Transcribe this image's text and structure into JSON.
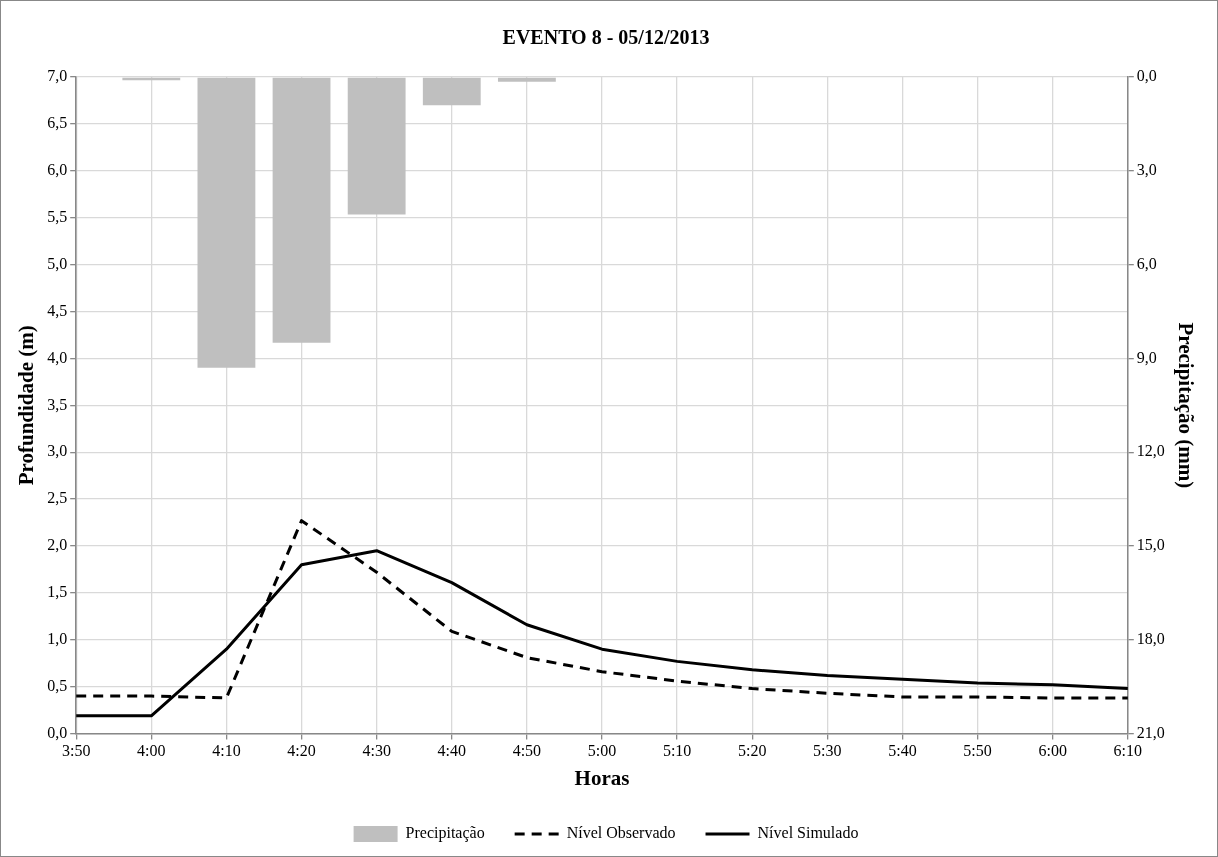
{
  "chart_data": {
    "type": "line",
    "title": "EVENTO 8 - 05/12/2013",
    "xlabel": "Horas",
    "ylabel": "Profundidade (m)",
    "y2label": "Precipitação (mm)",
    "categories": [
      "3:50",
      "4:00",
      "4:10",
      "4:20",
      "4:30",
      "4:40",
      "4:50",
      "5:00",
      "5:10",
      "5:20",
      "5:30",
      "5:40",
      "5:50",
      "6:00",
      "6:10"
    ],
    "series": [
      {
        "name": "Precipitação",
        "type": "bar",
        "axis": "y2",
        "color": "#bfbfbf",
        "values": [
          null,
          0.1,
          9.3,
          8.5,
          4.4,
          0.9,
          0.15,
          null,
          null,
          null,
          null,
          null,
          null,
          null,
          null
        ]
      },
      {
        "name": "Nível Observado",
        "line_style": "dashed",
        "color": "#000000",
        "values": [
          0.4,
          0.4,
          0.38,
          2.27,
          1.72,
          1.09,
          0.81,
          0.66,
          0.56,
          0.48,
          0.43,
          0.39,
          0.39,
          0.38,
          0.38
        ]
      },
      {
        "name": "Nível Simulado",
        "line_style": "solid",
        "color": "#000000",
        "values": [
          0.19,
          0.19,
          0.9,
          1.8,
          1.95,
          1.61,
          1.16,
          0.9,
          0.77,
          0.68,
          0.62,
          0.58,
          0.54,
          0.52,
          0.48
        ]
      }
    ],
    "ylim": [
      0,
      7
    ],
    "yticks": [
      {
        "value": 0,
        "label": "0,0"
      },
      {
        "value": 0.5,
        "label": "0,5"
      },
      {
        "value": 1,
        "label": "1,0"
      },
      {
        "value": 1.5,
        "label": "1,5"
      },
      {
        "value": 2,
        "label": "2,0"
      },
      {
        "value": 2.5,
        "label": "2,5"
      },
      {
        "value": 3,
        "label": "3,0"
      },
      {
        "value": 3.5,
        "label": "3,5"
      },
      {
        "value": 4,
        "label": "4,0"
      },
      {
        "value": 4.5,
        "label": "4,5"
      },
      {
        "value": 5,
        "label": "5,0"
      },
      {
        "value": 5.5,
        "label": "5,5"
      },
      {
        "value": 6,
        "label": "6,0"
      },
      {
        "value": 6.5,
        "label": "6,5"
      },
      {
        "value": 7,
        "label": "7,0"
      }
    ],
    "y2lim": [
      21,
      0
    ],
    "y2ticks": [
      {
        "value": 0,
        "label": "0,0"
      },
      {
        "value": 3,
        "label": "3,0"
      },
      {
        "value": 6,
        "label": "6,0"
      },
      {
        "value": 9,
        "label": "9,0"
      },
      {
        "value": 12,
        "label": "12,0"
      },
      {
        "value": 15,
        "label": "15,0"
      },
      {
        "value": 18,
        "label": "18,0"
      },
      {
        "value": 21,
        "label": "21,0"
      }
    ],
    "grid": true,
    "legend": "bottom",
    "marker": "none"
  }
}
